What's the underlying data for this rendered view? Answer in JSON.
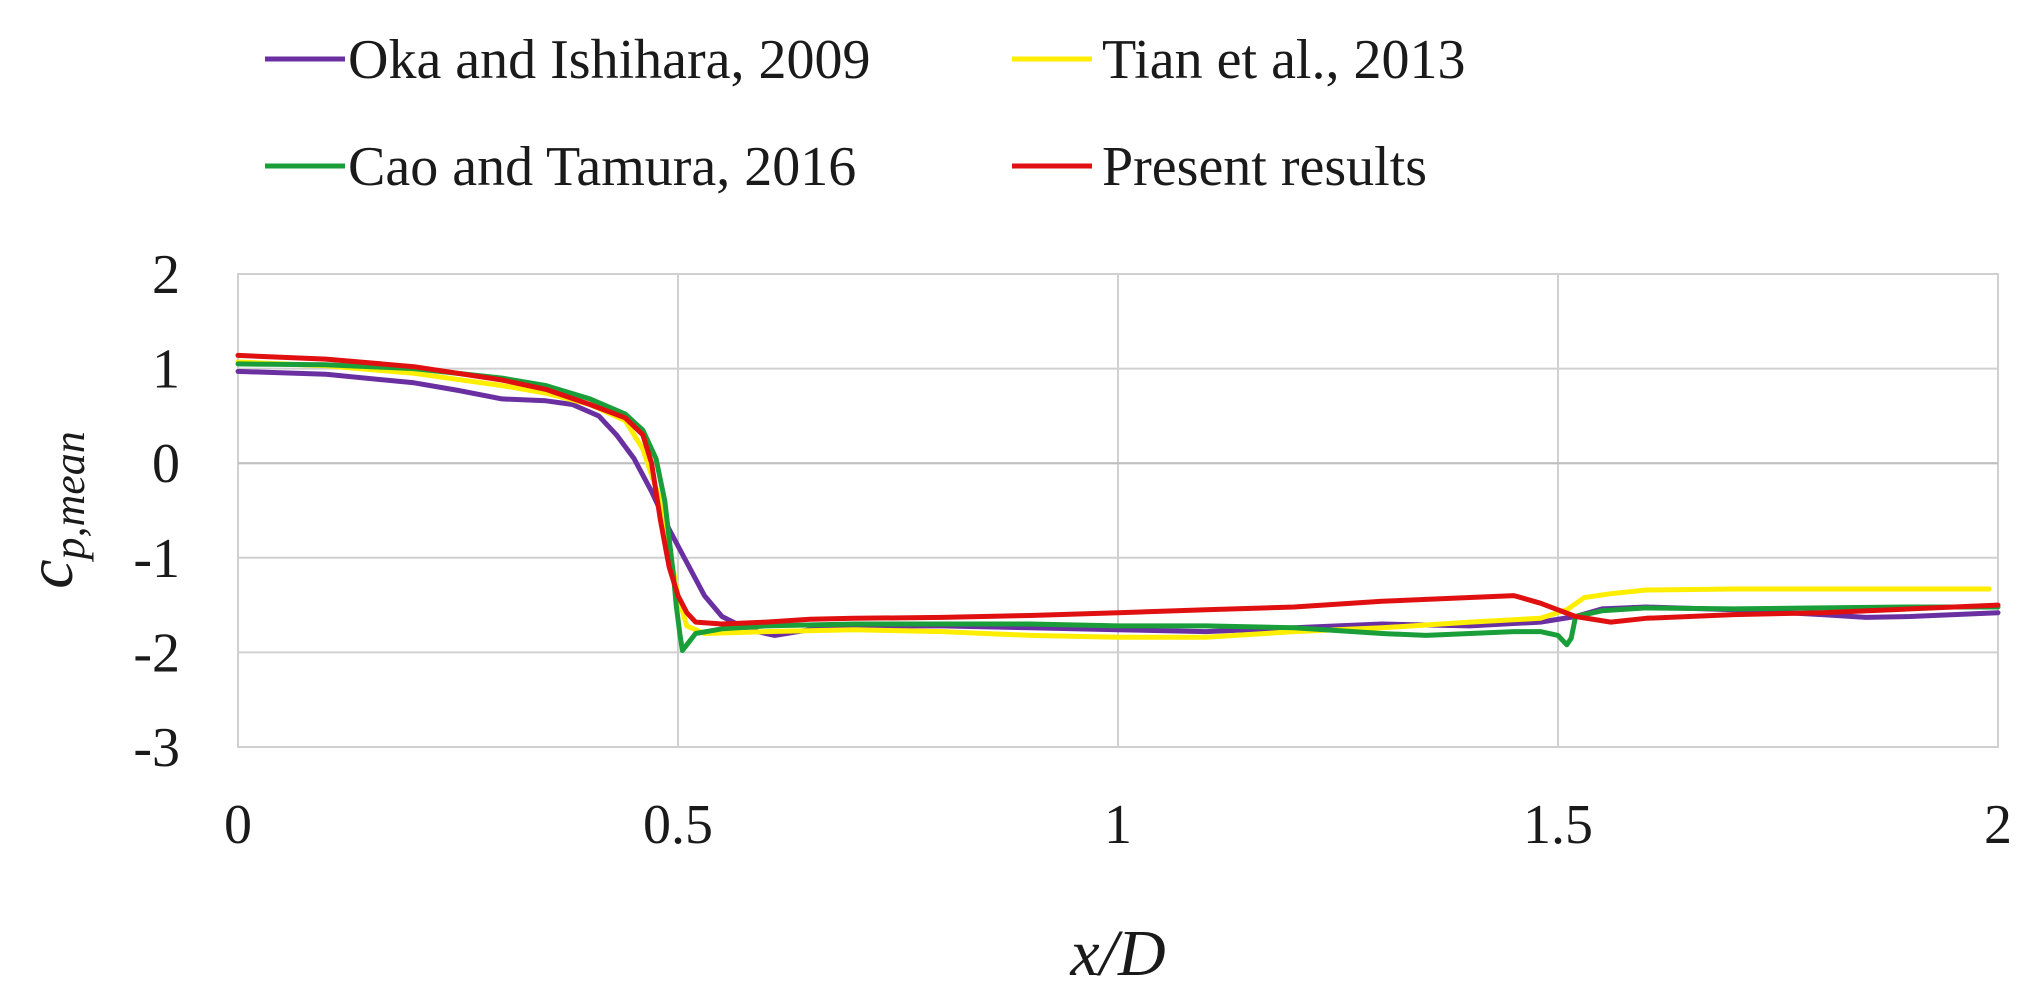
{
  "chart_data": {
    "type": "line",
    "title": "",
    "xlabel": "x/D",
    "ylabel": {
      "main": "c",
      "subscript": "p,mean"
    },
    "xlim": [
      0,
      2
    ],
    "ylim": [
      -3,
      2
    ],
    "x_ticks": [
      "0",
      "0.5",
      "1",
      "1.5",
      "2"
    ],
    "y_ticks": [
      "2",
      "1",
      "0",
      "-1",
      "-2",
      "-3"
    ],
    "grid": true,
    "legend_position": "top",
    "series": [
      {
        "name": "Oka and Ishihara, 2009",
        "color": "#6a2fa0",
        "points": [
          [
            0,
            0.97
          ],
          [
            0.1,
            0.94
          ],
          [
            0.2,
            0.85
          ],
          [
            0.25,
            0.77
          ],
          [
            0.3,
            0.68
          ],
          [
            0.35,
            0.66
          ],
          [
            0.38,
            0.62
          ],
          [
            0.41,
            0.5
          ],
          [
            0.43,
            0.3
          ],
          [
            0.45,
            0.05
          ],
          [
            0.47,
            -0.3
          ],
          [
            0.49,
            -0.7
          ],
          [
            0.51,
            -1.05
          ],
          [
            0.53,
            -1.4
          ],
          [
            0.55,
            -1.62
          ],
          [
            0.58,
            -1.76
          ],
          [
            0.61,
            -1.82
          ],
          [
            0.65,
            -1.76
          ],
          [
            0.7,
            -1.72
          ],
          [
            0.8,
            -1.72
          ],
          [
            0.9,
            -1.74
          ],
          [
            1.0,
            -1.76
          ],
          [
            1.1,
            -1.78
          ],
          [
            1.2,
            -1.74
          ],
          [
            1.3,
            -1.7
          ],
          [
            1.4,
            -1.72
          ],
          [
            1.48,
            -1.68
          ],
          [
            1.52,
            -1.62
          ],
          [
            1.55,
            -1.54
          ],
          [
            1.6,
            -1.52
          ],
          [
            1.7,
            -1.55
          ],
          [
            1.8,
            -1.6
          ],
          [
            1.85,
            -1.63
          ],
          [
            1.9,
            -1.62
          ],
          [
            2.0,
            -1.58
          ]
        ]
      },
      {
        "name": "Tian et al., 2013",
        "color": "#ffee00",
        "points": [
          [
            0,
            1.07
          ],
          [
            0.1,
            1.03
          ],
          [
            0.2,
            0.95
          ],
          [
            0.3,
            0.82
          ],
          [
            0.35,
            0.74
          ],
          [
            0.4,
            0.62
          ],
          [
            0.44,
            0.45
          ],
          [
            0.46,
            0.15
          ],
          [
            0.48,
            -0.4
          ],
          [
            0.49,
            -0.9
          ],
          [
            0.5,
            -1.4
          ],
          [
            0.51,
            -1.72
          ],
          [
            0.53,
            -1.8
          ],
          [
            0.6,
            -1.78
          ],
          [
            0.7,
            -1.76
          ],
          [
            0.8,
            -1.78
          ],
          [
            0.9,
            -1.82
          ],
          [
            1.0,
            -1.84
          ],
          [
            1.1,
            -1.84
          ],
          [
            1.2,
            -1.78
          ],
          [
            1.3,
            -1.74
          ],
          [
            1.4,
            -1.68
          ],
          [
            1.48,
            -1.64
          ],
          [
            1.51,
            -1.55
          ],
          [
            1.53,
            -1.42
          ],
          [
            1.56,
            -1.38
          ],
          [
            1.6,
            -1.34
          ],
          [
            1.7,
            -1.33
          ],
          [
            1.8,
            -1.33
          ],
          [
            1.9,
            -1.33
          ],
          [
            1.99,
            -1.33
          ]
        ]
      },
      {
        "name": "Cao and Tamura, 2016",
        "color": "#1a9e3a",
        "points": [
          [
            0,
            1.05
          ],
          [
            0.1,
            1.04
          ],
          [
            0.2,
            1.0
          ],
          [
            0.3,
            0.9
          ],
          [
            0.35,
            0.82
          ],
          [
            0.4,
            0.68
          ],
          [
            0.44,
            0.52
          ],
          [
            0.46,
            0.35
          ],
          [
            0.475,
            0.05
          ],
          [
            0.485,
            -0.4
          ],
          [
            0.495,
            -1.2
          ],
          [
            0.498,
            -1.5
          ],
          [
            0.502,
            -1.8
          ],
          [
            0.505,
            -1.98
          ],
          [
            0.51,
            -1.92
          ],
          [
            0.52,
            -1.8
          ],
          [
            0.55,
            -1.75
          ],
          [
            0.6,
            -1.72
          ],
          [
            0.7,
            -1.7
          ],
          [
            0.8,
            -1.7
          ],
          [
            0.9,
            -1.7
          ],
          [
            1.0,
            -1.72
          ],
          [
            1.1,
            -1.72
          ],
          [
            1.2,
            -1.74
          ],
          [
            1.3,
            -1.8
          ],
          [
            1.35,
            -1.82
          ],
          [
            1.4,
            -1.8
          ],
          [
            1.45,
            -1.78
          ],
          [
            1.48,
            -1.78
          ],
          [
            1.5,
            -1.82
          ],
          [
            1.51,
            -1.92
          ],
          [
            1.515,
            -1.85
          ],
          [
            1.52,
            -1.62
          ],
          [
            1.55,
            -1.56
          ],
          [
            1.6,
            -1.53
          ],
          [
            1.7,
            -1.54
          ],
          [
            1.8,
            -1.53
          ],
          [
            1.9,
            -1.52
          ],
          [
            2.0,
            -1.52
          ]
        ]
      },
      {
        "name": "Present results",
        "color": "#e01010",
        "points": [
          [
            0,
            1.14
          ],
          [
            0.1,
            1.1
          ],
          [
            0.2,
            1.02
          ],
          [
            0.3,
            0.88
          ],
          [
            0.35,
            0.78
          ],
          [
            0.4,
            0.62
          ],
          [
            0.44,
            0.48
          ],
          [
            0.46,
            0.3
          ],
          [
            0.47,
            0.0
          ],
          [
            0.48,
            -0.6
          ],
          [
            0.49,
            -1.1
          ],
          [
            0.5,
            -1.4
          ],
          [
            0.51,
            -1.58
          ],
          [
            0.52,
            -1.68
          ],
          [
            0.55,
            -1.7
          ],
          [
            0.6,
            -1.68
          ],
          [
            0.65,
            -1.65
          ],
          [
            0.7,
            -1.64
          ],
          [
            0.8,
            -1.63
          ],
          [
            0.9,
            -1.61
          ],
          [
            1.0,
            -1.58
          ],
          [
            1.1,
            -1.55
          ],
          [
            1.2,
            -1.52
          ],
          [
            1.3,
            -1.46
          ],
          [
            1.4,
            -1.42
          ],
          [
            1.45,
            -1.4
          ],
          [
            1.48,
            -1.48
          ],
          [
            1.52,
            -1.62
          ],
          [
            1.56,
            -1.68
          ],
          [
            1.6,
            -1.64
          ],
          [
            1.7,
            -1.6
          ],
          [
            1.8,
            -1.58
          ],
          [
            1.9,
            -1.54
          ],
          [
            2.0,
            -1.5
          ]
        ]
      }
    ]
  }
}
